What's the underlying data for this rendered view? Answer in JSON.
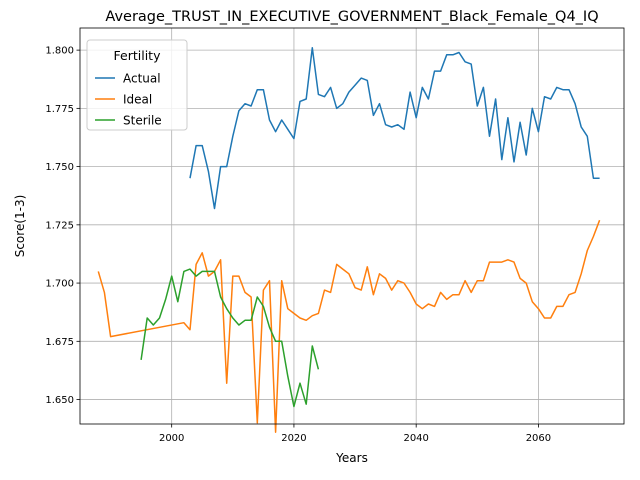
{
  "chart_data": {
    "type": "line",
    "title": "Average_TRUST_IN_EXECUTIVE_GOVERNMENT_Black_Female_Q4_IQ",
    "xlabel": "Years",
    "ylabel": "Score(1-3)",
    "xlim": [
      1985,
      2074
    ],
    "ylim": [
      1.6395,
      1.8095
    ],
    "xticks": [
      2000,
      2020,
      2040,
      2060
    ],
    "xtick_labels": [
      "2000",
      "2020",
      "2040",
      "2060"
    ],
    "yticks": [
      1.65,
      1.675,
      1.7,
      1.725,
      1.75,
      1.775,
      1.8
    ],
    "ytick_labels": [
      "1.650",
      "1.675",
      "1.700",
      "1.725",
      "1.750",
      "1.775",
      "1.800"
    ],
    "grid": true,
    "legend": {
      "title": "Fertility",
      "placement": "top-left"
    },
    "series": [
      {
        "name": "Actual",
        "color": "#1f77b4",
        "x": [
          2003,
          2004,
          2005,
          2006,
          2007,
          2008,
          2009,
          2010,
          2011,
          2012,
          2013,
          2014,
          2015,
          2016,
          2017,
          2018,
          2019,
          2020,
          2021,
          2022,
          2023,
          2024,
          2025,
          2026,
          2027,
          2028,
          2029,
          2030,
          2031,
          2032,
          2033,
          2034,
          2035,
          2036,
          2037,
          2038,
          2039,
          2040,
          2041,
          2042,
          2043,
          2044,
          2045,
          2046,
          2047,
          2048,
          2049,
          2050,
          2051,
          2052,
          2053,
          2054,
          2055,
          2056,
          2057,
          2058,
          2059,
          2060,
          2061,
          2062,
          2063,
          2064,
          2065,
          2066,
          2067,
          2068,
          2069,
          2070
        ],
        "y": [
          1.745,
          1.759,
          1.759,
          1.748,
          1.732,
          1.75,
          1.75,
          1.763,
          1.774,
          1.777,
          1.776,
          1.783,
          1.783,
          1.77,
          1.765,
          1.77,
          1.766,
          1.762,
          1.778,
          1.779,
          1.801,
          1.781,
          1.78,
          1.784,
          1.775,
          1.777,
          1.782,
          1.785,
          1.788,
          1.787,
          1.772,
          1.777,
          1.768,
          1.767,
          1.768,
          1.766,
          1.782,
          1.771,
          1.784,
          1.779,
          1.791,
          1.791,
          1.798,
          1.798,
          1.799,
          1.795,
          1.794,
          1.776,
          1.784,
          1.763,
          1.779,
          1.753,
          1.771,
          1.752,
          1.769,
          1.755,
          1.775,
          1.765,
          1.78,
          1.779,
          1.784,
          1.783,
          1.783,
          1.777,
          1.767,
          1.763,
          1.745,
          1.745
        ]
      },
      {
        "name": "Ideal",
        "color": "#ff7f0e",
        "x": [
          1988,
          1989,
          1990,
          2002,
          2003,
          2004,
          2005,
          2006,
          2007,
          2008,
          2009,
          2010,
          2011,
          2012,
          2013,
          2014,
          2015,
          2016,
          2017,
          2018,
          2019,
          2020,
          2021,
          2022,
          2023,
          2024,
          2025,
          2026,
          2027,
          2028,
          2029,
          2030,
          2031,
          2032,
          2033,
          2034,
          2035,
          2036,
          2037,
          2038,
          2039,
          2040,
          2041,
          2042,
          2043,
          2044,
          2045,
          2046,
          2047,
          2048,
          2049,
          2050,
          2051,
          2052,
          2053,
          2054,
          2055,
          2056,
          2057,
          2058,
          2059,
          2060,
          2061,
          2062,
          2063,
          2064,
          2065,
          2066,
          2067,
          2068,
          2069,
          2070
        ],
        "y": [
          1.705,
          1.696,
          1.677,
          1.683,
          1.68,
          1.708,
          1.713,
          1.703,
          1.705,
          1.71,
          1.657,
          1.703,
          1.703,
          1.696,
          1.694,
          1.64,
          1.697,
          1.701,
          1.636,
          1.701,
          1.689,
          1.687,
          1.685,
          1.684,
          1.686,
          1.687,
          1.697,
          1.696,
          1.708,
          1.706,
          1.704,
          1.698,
          1.697,
          1.707,
          1.695,
          1.704,
          1.702,
          1.697,
          1.701,
          1.7,
          1.696,
          1.691,
          1.689,
          1.691,
          1.69,
          1.696,
          1.693,
          1.695,
          1.695,
          1.701,
          1.696,
          1.701,
          1.701,
          1.709,
          1.709,
          1.709,
          1.71,
          1.709,
          1.702,
          1.7,
          1.692,
          1.689,
          1.685,
          1.685,
          1.69,
          1.69,
          1.695,
          1.696,
          1.704,
          1.714,
          1.72,
          1.727
        ]
      },
      {
        "name": "Sterile",
        "color": "#2ca02c",
        "x": [
          1995,
          1996,
          1997,
          1998,
          1999,
          2000,
          2001,
          2002,
          2003,
          2004,
          2005,
          2006,
          2007,
          2008,
          2009,
          2010,
          2011,
          2012,
          2013,
          2014,
          2015,
          2016,
          2017,
          2018,
          2019,
          2020,
          2021,
          2022,
          2023,
          2024
        ],
        "y": [
          1.667,
          1.685,
          1.682,
          1.685,
          1.693,
          1.703,
          1.692,
          1.705,
          1.706,
          1.703,
          1.705,
          1.705,
          1.705,
          1.694,
          1.689,
          1.685,
          1.682,
          1.684,
          1.684,
          1.694,
          1.69,
          1.681,
          1.675,
          1.675,
          1.66,
          1.647,
          1.657,
          1.648,
          1.673,
          1.663
        ]
      }
    ]
  }
}
